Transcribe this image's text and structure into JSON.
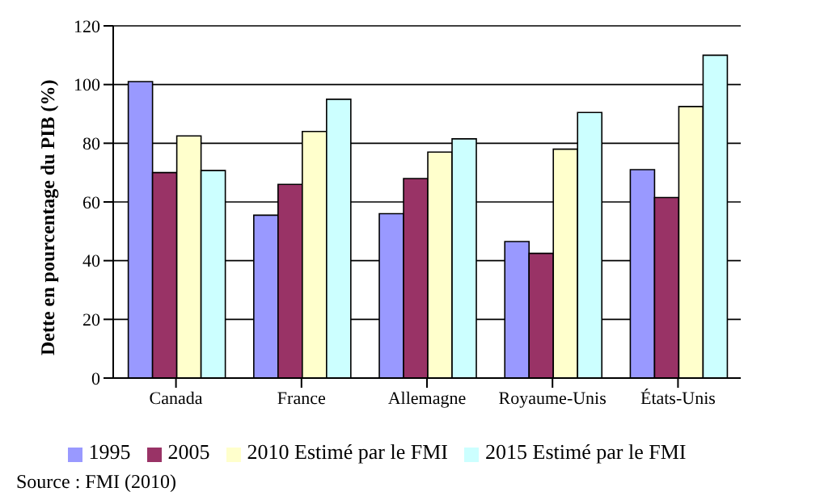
{
  "chart_data": {
    "type": "bar",
    "ylabel": "Dette en pourcentage du PIB (%)",
    "categories": [
      "Canada",
      "France",
      "Allemagne",
      "Royaume-Unis",
      "États-Unis"
    ],
    "series": [
      {
        "name": "1995",
        "color": "#9999ff",
        "values": [
          101,
          55.5,
          56,
          46.5,
          71
        ]
      },
      {
        "name": "2005",
        "color": "#993366",
        "values": [
          70,
          66,
          68,
          42.5,
          61.5
        ]
      },
      {
        "name": "2010 Estimé par le FMI",
        "color": "#ffffcc",
        "values": [
          82.5,
          84,
          77,
          78,
          92.5
        ]
      },
      {
        "name": "2015 Estimé par le FMI",
        "color": "#ccffff",
        "values": [
          70.7,
          95,
          81.5,
          90.5,
          110
        ]
      }
    ],
    "ylim": [
      0,
      120
    ],
    "yticks": [
      0,
      20,
      40,
      60,
      80,
      100,
      120
    ],
    "grid": "y",
    "legend": "bottom",
    "annotations": [
      "Source : FMI (2010)"
    ]
  }
}
